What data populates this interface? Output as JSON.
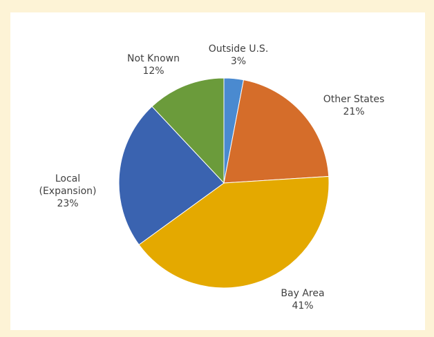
{
  "chart_data": {
    "type": "pie",
    "categories": [
      "Outside U.S.",
      "Other States",
      "Bay Area",
      "Local (Expansion)",
      "Not Known"
    ],
    "values": [
      3,
      21,
      41,
      23,
      12
    ],
    "value_labels": [
      "3%",
      "21%",
      "41%",
      "23%",
      "12%"
    ],
    "colors": [
      "#4a8ad0",
      "#d56d2a",
      "#e4a900",
      "#3a63b0",
      "#6b9b3b"
    ]
  }
}
